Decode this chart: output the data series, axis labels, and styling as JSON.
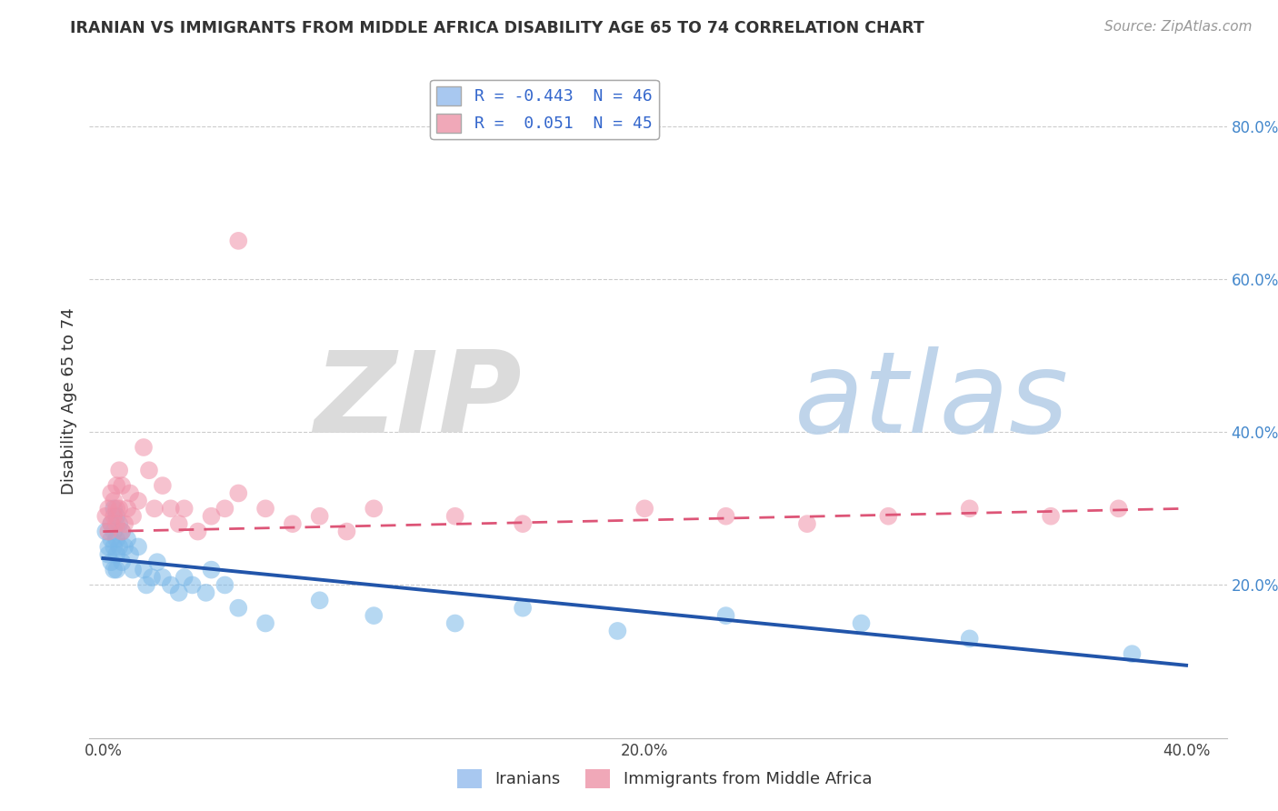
{
  "title": "IRANIAN VS IMMIGRANTS FROM MIDDLE AFRICA DISABILITY AGE 65 TO 74 CORRELATION CHART",
  "source": "Source: ZipAtlas.com",
  "ylabel": "Disability Age 65 to 74",
  "xlim": [
    -0.005,
    0.415
  ],
  "ylim": [
    0.0,
    0.88
  ],
  "xtick_vals": [
    0.0,
    0.1,
    0.2,
    0.3,
    0.4
  ],
  "xtick_labels": [
    "0.0%",
    "",
    "20.0%",
    "",
    "40.0%"
  ],
  "ytick_vals": [
    0.2,
    0.4,
    0.6,
    0.8
  ],
  "ytick_labels": [
    "20.0%",
    "40.0%",
    "60.0%",
    "80.0%"
  ],
  "series1_name": "Iranians",
  "series2_name": "Immigrants from Middle Africa",
  "series1_color": "#7ab8e8",
  "series2_color": "#f090a8",
  "series1_line_color": "#2255aa",
  "series2_line_color": "#dd5577",
  "legend_label1": "R = -0.443  N = 46",
  "legend_label2": "R =  0.051  N = 45",
  "legend_color1": "#a8c8f0",
  "legend_color2": "#f0a8b8",
  "iranians_x": [
    0.001,
    0.002,
    0.002,
    0.003,
    0.003,
    0.003,
    0.004,
    0.004,
    0.004,
    0.004,
    0.005,
    0.005,
    0.005,
    0.005,
    0.006,
    0.006,
    0.007,
    0.007,
    0.008,
    0.009,
    0.01,
    0.011,
    0.013,
    0.015,
    0.016,
    0.018,
    0.02,
    0.022,
    0.025,
    0.028,
    0.03,
    0.033,
    0.038,
    0.04,
    0.045,
    0.05,
    0.06,
    0.08,
    0.1,
    0.13,
    0.155,
    0.19,
    0.23,
    0.28,
    0.32,
    0.38
  ],
  "iranians_y": [
    0.27,
    0.25,
    0.24,
    0.28,
    0.26,
    0.23,
    0.3,
    0.27,
    0.25,
    0.22,
    0.29,
    0.26,
    0.24,
    0.22,
    0.28,
    0.25,
    0.27,
    0.23,
    0.25,
    0.26,
    0.24,
    0.22,
    0.25,
    0.22,
    0.2,
    0.21,
    0.23,
    0.21,
    0.2,
    0.19,
    0.21,
    0.2,
    0.19,
    0.22,
    0.2,
    0.17,
    0.15,
    0.18,
    0.16,
    0.15,
    0.17,
    0.14,
    0.16,
    0.15,
    0.13,
    0.11
  ],
  "midafrica_x": [
    0.001,
    0.002,
    0.002,
    0.003,
    0.003,
    0.004,
    0.004,
    0.005,
    0.005,
    0.005,
    0.006,
    0.006,
    0.007,
    0.007,
    0.008,
    0.009,
    0.01,
    0.011,
    0.013,
    0.015,
    0.017,
    0.019,
    0.022,
    0.025,
    0.028,
    0.03,
    0.035,
    0.04,
    0.045,
    0.05,
    0.06,
    0.07,
    0.08,
    0.09,
    0.1,
    0.13,
    0.155,
    0.2,
    0.23,
    0.26,
    0.29,
    0.32,
    0.35,
    0.375,
    0.05
  ],
  "midafrica_y": [
    0.29,
    0.27,
    0.3,
    0.28,
    0.32,
    0.29,
    0.31,
    0.3,
    0.28,
    0.33,
    0.35,
    0.3,
    0.27,
    0.33,
    0.28,
    0.3,
    0.32,
    0.29,
    0.31,
    0.38,
    0.35,
    0.3,
    0.33,
    0.3,
    0.28,
    0.3,
    0.27,
    0.29,
    0.3,
    0.32,
    0.3,
    0.28,
    0.29,
    0.27,
    0.3,
    0.29,
    0.28,
    0.3,
    0.29,
    0.28,
    0.29,
    0.3,
    0.29,
    0.3,
    0.65
  ],
  "line1_x0": 0.0,
  "line1_y0": 0.235,
  "line1_x1": 0.4,
  "line1_y1": 0.095,
  "line2_x0": 0.0,
  "line2_y0": 0.27,
  "line2_x1": 0.4,
  "line2_y1": 0.3
}
